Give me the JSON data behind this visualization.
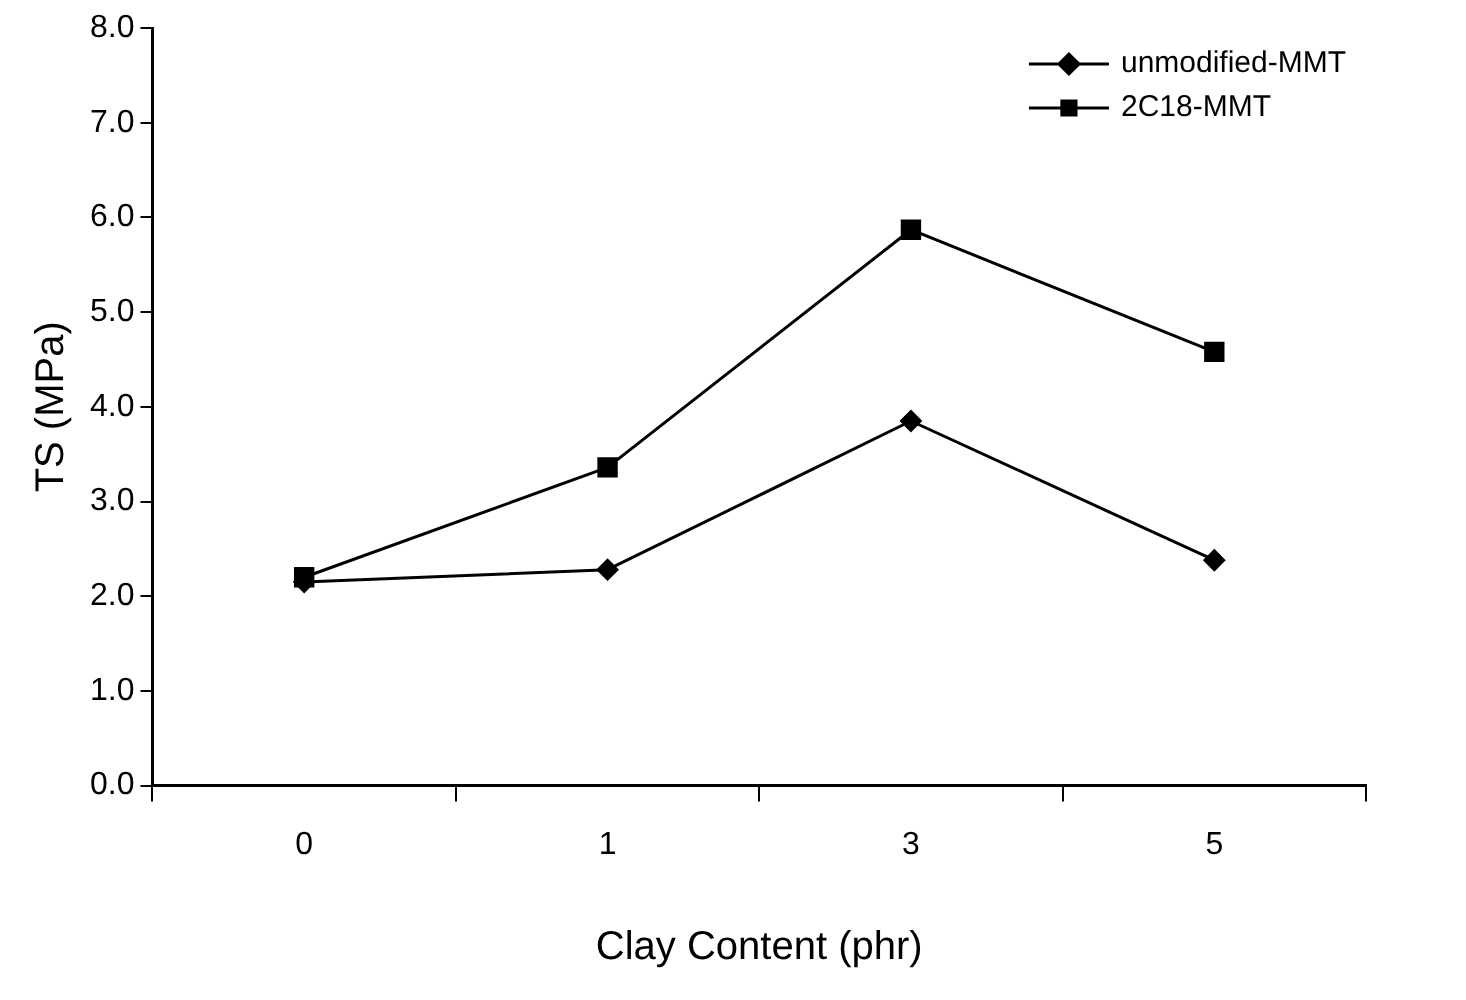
{
  "chart_data": {
    "type": "line",
    "xlabel": "Clay Content (phr)",
    "ylabel": "TS (MPa)",
    "categories": [
      "0",
      "1",
      "3",
      "5"
    ],
    "series": [
      {
        "name": "unmodified-MMT",
        "color": "#000000",
        "marker": "diamond",
        "values": [
          2.15,
          2.28,
          3.85,
          2.38
        ]
      },
      {
        "name": "2C18-MMT",
        "color": "#000000",
        "marker": "square",
        "values": [
          2.2,
          3.36,
          5.87,
          4.58
        ]
      }
    ],
    "ylim": [
      0,
      8
    ],
    "yticks": [
      {
        "value": 0,
        "label": "0.0"
      },
      {
        "value": 1,
        "label": "1.0"
      },
      {
        "value": 2,
        "label": "2.0"
      },
      {
        "value": 3,
        "label": "3.0"
      },
      {
        "value": 4,
        "label": "4.0"
      },
      {
        "value": 5,
        "label": "5.0"
      },
      {
        "value": 6,
        "label": "6.0"
      },
      {
        "value": 7,
        "label": "7.0"
      },
      {
        "value": 8,
        "label": "8.0"
      }
    ],
    "grid": false,
    "legend": "top right",
    "line_style": "solid"
  }
}
